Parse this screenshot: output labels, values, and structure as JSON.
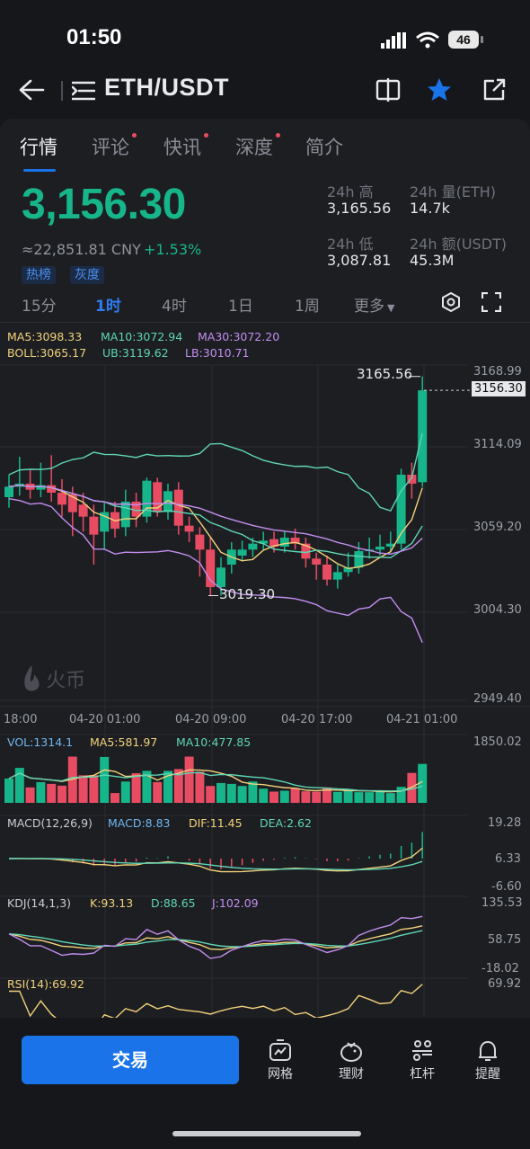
{
  "status_bar": {
    "time": "01:50",
    "battery": "46"
  },
  "header": {
    "pair": "ETH/USDT"
  },
  "tabs": [
    {
      "label": "行情",
      "active": true,
      "dot": false
    },
    {
      "label": "评论",
      "active": false,
      "dot": true
    },
    {
      "label": "快讯",
      "active": false,
      "dot": true
    },
    {
      "label": "深度",
      "active": false,
      "dot": true
    },
    {
      "label": "简介",
      "active": false,
      "dot": false
    }
  ],
  "ticker": {
    "last_price": "3,156.30",
    "cny_value": "≈22,851.81 CNY",
    "change": "+1.53%",
    "badges": [
      "热榜",
      "灰度"
    ],
    "high_label": "24h 高",
    "high_value": "3,165.56",
    "vol_label": "24h 量(ETH)",
    "vol_value": "14.7k",
    "low_label": "24h 低",
    "low_value": "3,087.81",
    "turnover_label": "24h 额(USDT)",
    "turnover_value": "45.3M"
  },
  "intervals": [
    {
      "label": "15分",
      "active": false
    },
    {
      "label": "1时",
      "active": true
    },
    {
      "label": "4时",
      "active": false
    },
    {
      "label": "1日",
      "active": false
    },
    {
      "label": "1周",
      "active": false
    },
    {
      "label": "更多",
      "active": false
    }
  ],
  "indicators": {
    "ma5": "MA5:3098.33",
    "ma10": "MA10:3072.94",
    "ma30": "MA30:3072.20",
    "boll": "BOLL:3065.17",
    "ub": "UB:3119.62",
    "lb": "LB:3010.71",
    "vol": "VOL:1314.1",
    "vol_ma5": "MA5:581.97",
    "vol_ma10": "MA10:477.85",
    "macd_params": "MACD(12,26,9)",
    "macd": "MACD:8.83",
    "dif": "DIF:11.45",
    "dea": "DEA:2.62",
    "kdj_params": "KDJ(14,1,3)",
    "k": "K:93.13",
    "d": "D:88.65",
    "j": "J:102.09",
    "rsi": "RSI(14):69.92"
  },
  "price_axis": [
    "3168.99",
    "3114.09",
    "3059.20",
    "3004.30",
    "2949.40"
  ],
  "current_tag": "3156.30",
  "max_marker": "3165.56",
  "min_marker": "3019.30",
  "time_axis": [
    "18:00",
    "04-20 01:00",
    "04-20 09:00",
    "04-20 17:00",
    "04-21 01:00"
  ],
  "vol_axis": "1850.02",
  "macd_axis": [
    "19.28",
    "6.33",
    "-6.60"
  ],
  "kdj_axis": [
    "135.53",
    "58.75",
    "-18.02"
  ],
  "rsi_axis": "69.92",
  "watermark": "火币",
  "colors": {
    "up": "#17b58a",
    "down": "#e84c63",
    "accent": "#1a73e8",
    "ma5": "#f2d27a",
    "ma10": "#5fd6b5",
    "ma30": "#c28df0"
  },
  "bottom_nav": {
    "trade": "交易",
    "items": [
      {
        "label": "网格",
        "icon": "grid-bot-icon"
      },
      {
        "label": "理财",
        "icon": "piggy-bank-icon"
      },
      {
        "label": "杠杆",
        "icon": "leverage-icon"
      },
      {
        "label": "提醒",
        "icon": "bell-icon"
      }
    ]
  },
  "chart_data": {
    "type": "candlestick",
    "title": "ETH/USDT 1H",
    "ylim": [
      2949.4,
      3168.99
    ],
    "x_ticks": [
      "18:00",
      "04-20 01:00",
      "04-20 09:00",
      "04-20 17:00",
      "04-21 01:00"
    ],
    "candles": [
      {
        "o": 3085,
        "c": 3092,
        "h": 3100,
        "l": 3078
      },
      {
        "o": 3092,
        "c": 3094,
        "h": 3112,
        "l": 3086
      },
      {
        "o": 3094,
        "c": 3090,
        "h": 3103,
        "l": 3084
      },
      {
        "o": 3090,
        "c": 3093,
        "h": 3108,
        "l": 3085
      },
      {
        "o": 3093,
        "c": 3088,
        "h": 3113,
        "l": 3082
      },
      {
        "o": 3088,
        "c": 3080,
        "h": 3097,
        "l": 3072
      },
      {
        "o": 3087,
        "c": 3075,
        "h": 3092,
        "l": 3059
      },
      {
        "o": 3080,
        "c": 3072,
        "h": 3088,
        "l": 3062
      },
      {
        "o": 3072,
        "c": 3060,
        "h": 3080,
        "l": 3040
      },
      {
        "o": 3062,
        "c": 3075,
        "h": 3082,
        "l": 3050
      },
      {
        "o": 3075,
        "c": 3064,
        "h": 3082,
        "l": 3058
      },
      {
        "o": 3065,
        "c": 3082,
        "h": 3090,
        "l": 3059
      },
      {
        "o": 3082,
        "c": 3072,
        "h": 3088,
        "l": 3065
      },
      {
        "o": 3072,
        "c": 3096,
        "h": 3098,
        "l": 3068
      },
      {
        "o": 3095,
        "c": 3075,
        "h": 3098,
        "l": 3072
      },
      {
        "o": 3075,
        "c": 3089,
        "h": 3094,
        "l": 3070
      },
      {
        "o": 3090,
        "c": 3066,
        "h": 3095,
        "l": 3060
      },
      {
        "o": 3066,
        "c": 3062,
        "h": 3072,
        "l": 3055
      },
      {
        "o": 3060,
        "c": 3050,
        "h": 3065,
        "l": 3032
      },
      {
        "o": 3050,
        "c": 3025,
        "h": 3058,
        "l": 3019.3
      },
      {
        "o": 3025,
        "c": 3038,
        "h": 3045,
        "l": 3019.3
      },
      {
        "o": 3040,
        "c": 3050,
        "h": 3055,
        "l": 3034
      },
      {
        "o": 3046,
        "c": 3050,
        "h": 3056,
        "l": 3042
      },
      {
        "o": 3050,
        "c": 3054,
        "h": 3058,
        "l": 3045
      },
      {
        "o": 3054,
        "c": 3056,
        "h": 3062,
        "l": 3050
      },
      {
        "o": 3057,
        "c": 3052,
        "h": 3062,
        "l": 3048
      },
      {
        "o": 3052,
        "c": 3058,
        "h": 3062,
        "l": 3048
      },
      {
        "o": 3058,
        "c": 3054,
        "h": 3064,
        "l": 3050
      },
      {
        "o": 3054,
        "c": 3044,
        "h": 3058,
        "l": 3038
      },
      {
        "o": 3044,
        "c": 3040,
        "h": 3048,
        "l": 3030
      },
      {
        "o": 3040,
        "c": 3030,
        "h": 3046,
        "l": 3026
      },
      {
        "o": 3030,
        "c": 3035,
        "h": 3040,
        "l": 3024
      },
      {
        "o": 3035,
        "c": 3038,
        "h": 3048,
        "l": 3032
      },
      {
        "o": 3038,
        "c": 3049,
        "h": 3055,
        "l": 3034
      },
      {
        "o": 3049,
        "c": 3050,
        "h": 3058,
        "l": 3044
      },
      {
        "o": 3050,
        "c": 3052,
        "h": 3060,
        "l": 3046
      },
      {
        "o": 3052,
        "c": 3054,
        "h": 3062,
        "l": 3048
      },
      {
        "o": 3054,
        "c": 3100,
        "h": 3104,
        "l": 3050
      },
      {
        "o": 3100,
        "c": 3094,
        "h": 3108,
        "l": 3084
      },
      {
        "o": 3095,
        "c": 3156.3,
        "h": 3165.56,
        "l": 3092
      }
    ],
    "volume": [
      820,
      1180,
      520,
      700,
      640,
      580,
      1560,
      930,
      930,
      1550,
      330,
      720,
      1000,
      1080,
      700,
      1080,
      1140,
      1560,
      1050,
      570,
      670,
      640,
      570,
      720,
      480,
      380,
      410,
      490,
      390,
      380,
      520,
      370,
      410,
      360,
      360,
      400,
      330,
      540,
      1010,
      1314.1
    ]
  }
}
